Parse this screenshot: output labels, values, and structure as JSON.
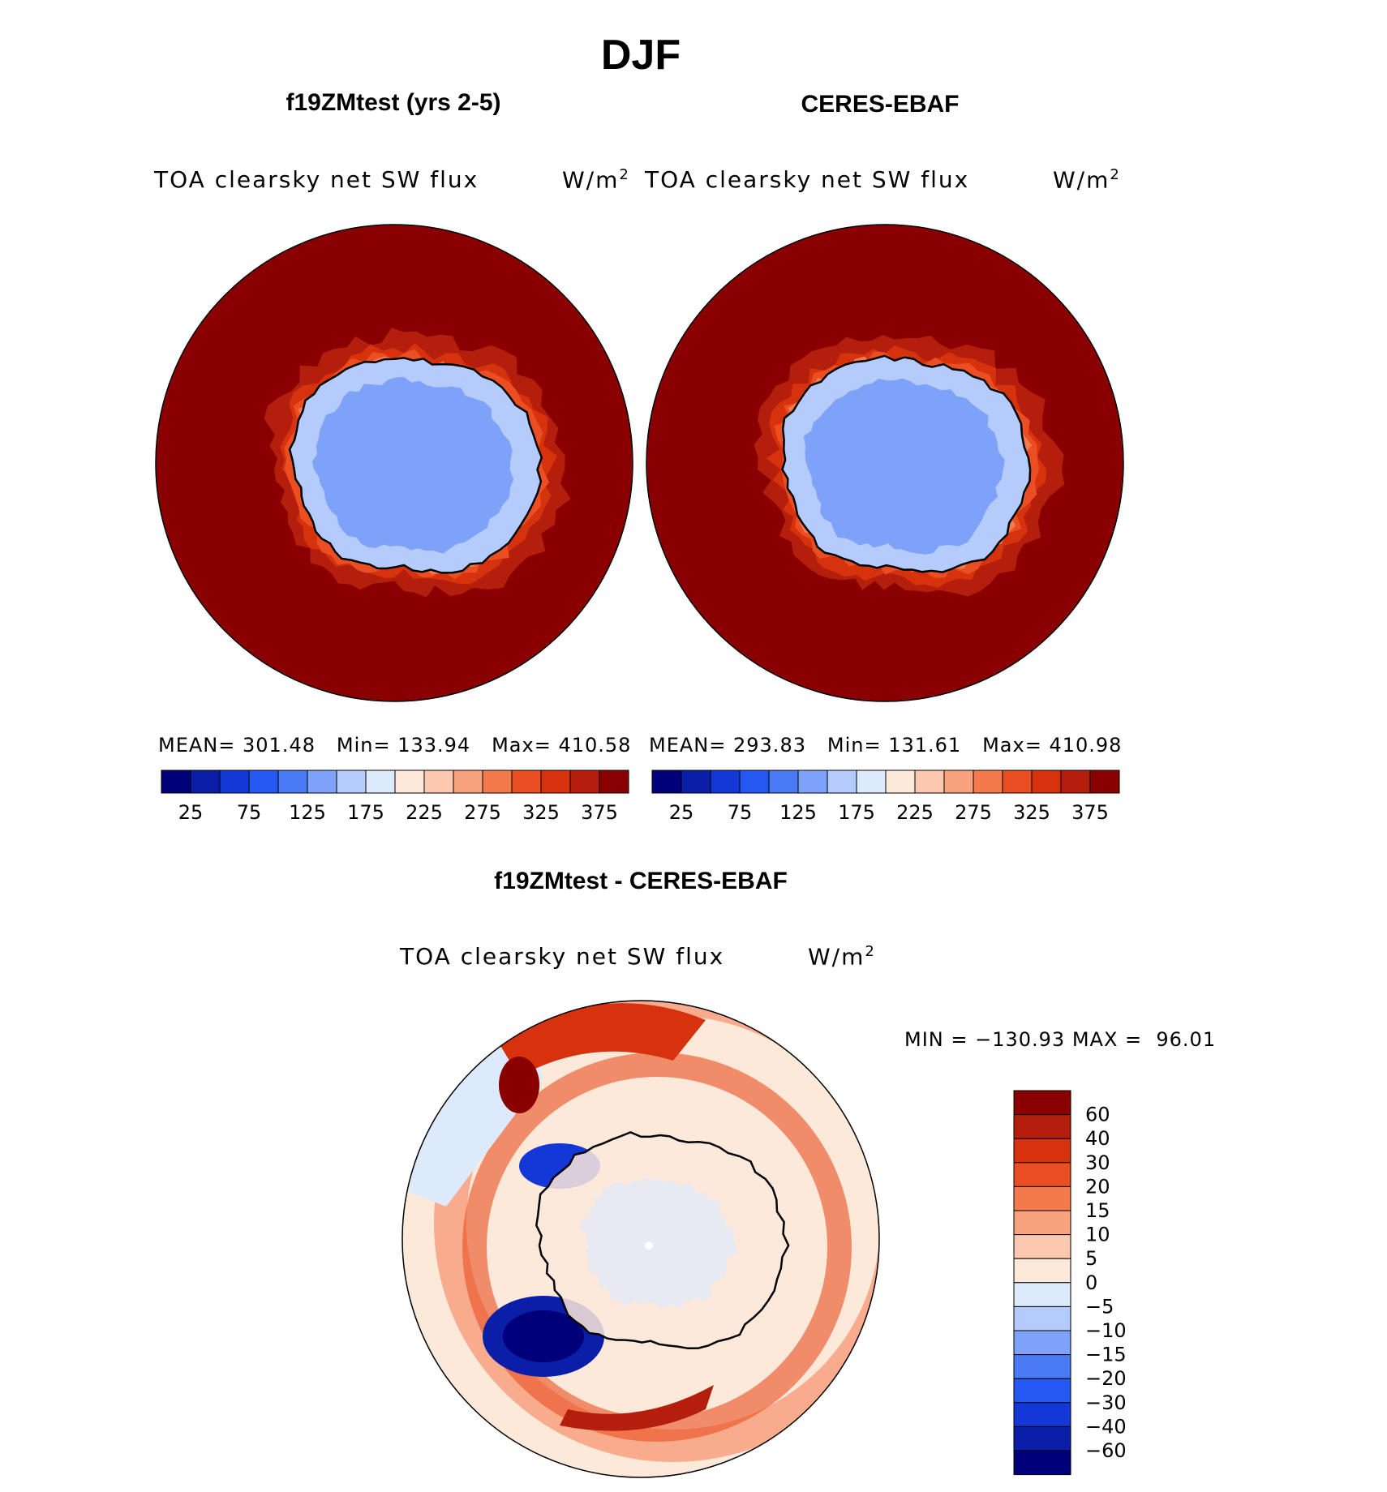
{
  "page_title": "DJF",
  "panels": [
    {
      "title": "f19ZMtest (yrs 2-5)",
      "variable": "TOA clearsky net SW flux",
      "units": "W/m",
      "units_sup": "2",
      "stats": {
        "mean_label": "MEAN=",
        "mean": "301.48",
        "min_label": "Min=",
        "min": "133.94",
        "max_label": "Max=",
        "max": "410.58"
      }
    },
    {
      "title": "CERES-EBAF",
      "variable": "TOA clearsky net SW flux",
      "units": "W/m",
      "units_sup": "2",
      "stats": {
        "mean_label": "MEAN=",
        "mean": "293.83",
        "min_label": "Min=",
        "min": "131.61",
        "max_label": "Max=",
        "max": "410.98"
      }
    },
    {
      "title": "f19ZMtest - CERES-EBAF",
      "variable": "TOA clearsky net SW flux",
      "units": "W/m",
      "units_sup": "2",
      "minmax": "MIN = −130.93 MAX =  96.01"
    }
  ],
  "chart_data": [
    {
      "type": "heatmap",
      "title": "f19ZMtest (yrs 2-5)",
      "variable": "TOA clearsky net SW flux",
      "units": "W/m2",
      "projection": "polar-south",
      "mean": 301.48,
      "min": 133.94,
      "max": 410.58,
      "colorbar_levels": [
        25,
        50,
        75,
        100,
        125,
        150,
        175,
        200,
        225,
        250,
        275,
        300,
        325,
        350,
        375
      ],
      "colorbar_tick_labels": [
        "25",
        "75",
        "125",
        "175",
        "225",
        "275",
        "325",
        "375"
      ]
    },
    {
      "type": "heatmap",
      "title": "CERES-EBAF",
      "variable": "TOA clearsky net SW flux",
      "units": "W/m2",
      "projection": "polar-south",
      "mean": 293.83,
      "min": 131.61,
      "max": 410.98,
      "colorbar_levels": [
        25,
        50,
        75,
        100,
        125,
        150,
        175,
        200,
        225,
        250,
        275,
        300,
        325,
        350,
        375
      ],
      "colorbar_tick_labels": [
        "25",
        "75",
        "125",
        "175",
        "225",
        "275",
        "325",
        "375"
      ]
    },
    {
      "type": "heatmap",
      "title": "f19ZMtest - CERES-EBAF",
      "variable": "TOA clearsky net SW flux",
      "units": "W/m2",
      "projection": "polar-south",
      "min": -130.93,
      "max": 96.01,
      "colorbar_tick_labels": [
        "60",
        "40",
        "30",
        "20",
        "15",
        "10",
        "5",
        "0",
        "−5",
        "−10",
        "−15",
        "−20",
        "−30",
        "−40",
        "−60"
      ]
    }
  ],
  "colors": {
    "abs_scale": [
      "#00007a",
      "#0a1ea8",
      "#1438d8",
      "#2458f0",
      "#4a7af5",
      "#7ea2f8",
      "#b4cbfb",
      "#ddeafc",
      "#fde9da",
      "#fcc9b0",
      "#f9a27e",
      "#f47a4e",
      "#ea4e22",
      "#d6320e",
      "#b41e0c",
      "#8a0000"
    ],
    "diff_scale": [
      "#8a0000",
      "#b41e0c",
      "#d6320e",
      "#ea4e22",
      "#f47a4e",
      "#f9a27e",
      "#fcc9b0",
      "#fde9da",
      "#ddeafc",
      "#b4cbfb",
      "#7ea2f8",
      "#4a7af5",
      "#2458f0",
      "#1438d8",
      "#0a1ea8",
      "#00007a"
    ]
  }
}
